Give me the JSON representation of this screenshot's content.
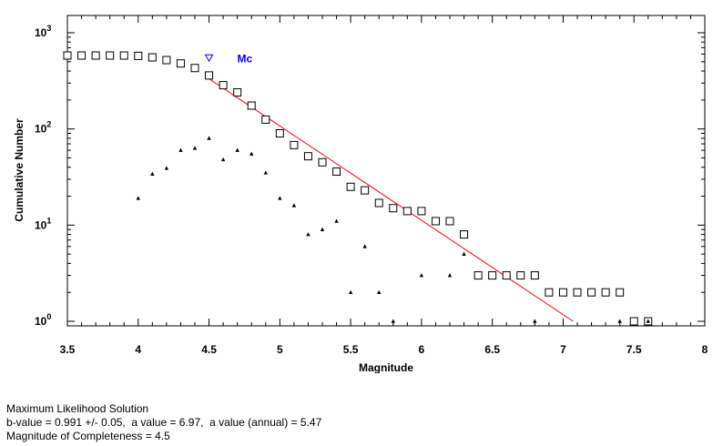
{
  "chart_data": {
    "type": "scatter",
    "xlabel": "Magnitude",
    "ylabel": "Cumulative Number",
    "xlim": [
      3.5,
      8
    ],
    "ylim": [
      1,
      1000
    ],
    "y_scale": "log",
    "x_ticks": [
      "3.5",
      "4",
      "4.5",
      "5",
      "5.5",
      "6",
      "6.5",
      "7",
      "7.5",
      "8"
    ],
    "y_ticks": [
      {
        "value": 1,
        "base": "10",
        "exp": "0"
      },
      {
        "value": 10,
        "base": "10",
        "exp": "1"
      },
      {
        "value": 100,
        "base": "10",
        "exp": "2"
      },
      {
        "value": 1000,
        "base": "10",
        "exp": "3"
      }
    ],
    "grid": false,
    "series": [
      {
        "marker": "square",
        "x": [
          3.5,
          3.6,
          3.7,
          3.8,
          3.9,
          4.0,
          4.1,
          4.2,
          4.3,
          4.4,
          4.5,
          4.6,
          4.7,
          4.8,
          4.9,
          5.0,
          5.1,
          5.2,
          5.3,
          5.4,
          5.5,
          5.6,
          5.7,
          5.8,
          5.9,
          6.0,
          6.1,
          6.2,
          6.3,
          6.4,
          6.5,
          6.6,
          6.7,
          6.8,
          6.9,
          7.0,
          7.1,
          7.2,
          7.3,
          7.4,
          7.5,
          7.6
        ],
        "y": [
          580,
          580,
          580,
          580,
          580,
          575,
          555,
          520,
          480,
          430,
          360,
          285,
          240,
          175,
          125,
          90,
          68,
          52,
          45,
          36,
          25,
          23,
          17,
          15,
          14,
          14,
          11,
          11,
          8,
          3,
          3,
          3,
          3,
          3,
          2,
          2,
          2,
          2,
          2,
          2,
          1,
          1
        ]
      },
      {
        "marker": "triangle",
        "x": [
          4.0,
          4.1,
          4.2,
          4.3,
          4.4,
          4.5,
          4.6,
          4.7,
          4.8,
          4.9,
          5.0,
          5.1,
          5.2,
          5.3,
          5.4,
          5.5,
          5.6,
          5.7,
          5.8,
          6.0,
          6.2,
          6.3,
          6.8,
          7.4,
          7.6
        ],
        "y": [
          19,
          34,
          39,
          60,
          63,
          80,
          48,
          60,
          55,
          35,
          19,
          16,
          8,
          9,
          11,
          2,
          6,
          2,
          1,
          3,
          3,
          5,
          1,
          1,
          1
        ]
      }
    ],
    "fit_line": {
      "color": "#ff0000",
      "x": [
        4.5,
        7.07
      ],
      "y": [
        332,
        1
      ]
    },
    "annotations": [
      {
        "label": "Mc",
        "marker": "triangle-down",
        "x": 4.5,
        "y": 540,
        "color": "#0000ff"
      }
    ]
  },
  "info": {
    "line1": "Maximum Likelihood Solution",
    "line2": "b-value = 0.991 +/- 0.05,  a value = 6.97,  a value (annual) = 5.47",
    "line3": "Magnitude of Completeness = 4.5"
  }
}
